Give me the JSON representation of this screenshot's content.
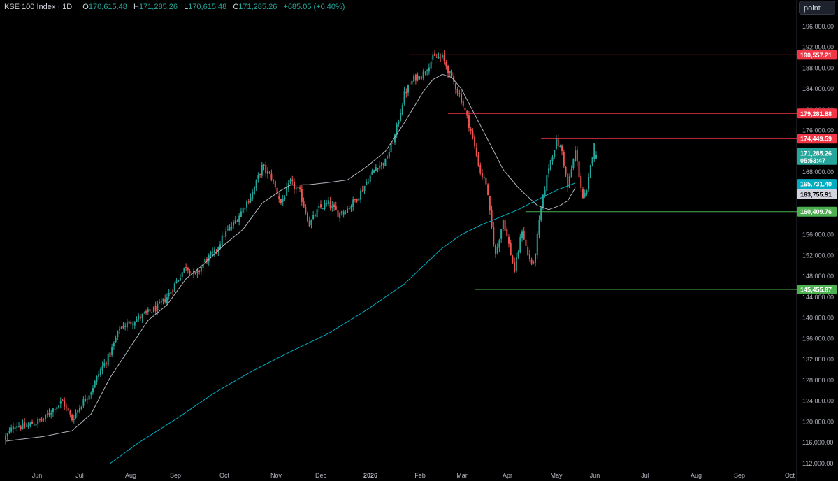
{
  "header": {
    "symbol": "KSE 100 Index · 1D",
    "open_label": "O",
    "open": "170,615.48",
    "high_label": "H",
    "high": "171,285.26",
    "low_label": "L",
    "low": "170,615.48",
    "close_label": "C",
    "close": "171,285.26",
    "change": "+685.05 (+0.40%)"
  },
  "unit_button": "point",
  "colors": {
    "up": "#26a69a",
    "down": "#ef5350",
    "ma_short": "#b2b5be",
    "ma_long": "#00acc1",
    "resistance": "#f23645",
    "support": "#4caf50"
  },
  "chart_data": {
    "type": "candlestick",
    "title": "KSE 100 Index · 1D",
    "ylim": [
      112000,
      198000
    ],
    "y_ticks": [
      "196,000.00",
      "192,000.00",
      "188,000.00",
      "184,000.00",
      "180,000.00",
      "176,000.00",
      "172,000.00",
      "168,000.00",
      "164,000.00",
      "160,000.00",
      "156,000.00",
      "152,000.00",
      "148,000.00",
      "144,000.00",
      "140,000.00",
      "136,000.00",
      "132,000.00",
      "128,000.00",
      "124,000.00",
      "120,000.00",
      "116,000.00",
      "112,000.00"
    ],
    "x_labels": [
      "Jun",
      "Jul",
      "Aug",
      "Sep",
      "Oct",
      "Nov",
      "Dec",
      "2026",
      "Feb",
      "Mar",
      "Apr",
      "May",
      "Jun",
      "Jul",
      "Aug",
      "Sep",
      "Oct"
    ],
    "close_anchors": [
      [
        0,
        117000
      ],
      [
        5,
        119500
      ],
      [
        10,
        119000
      ],
      [
        15,
        119800
      ],
      [
        20,
        120500
      ],
      [
        25,
        122500
      ],
      [
        30,
        124000
      ],
      [
        35,
        120500
      ],
      [
        40,
        123500
      ],
      [
        45,
        126000
      ],
      [
        50,
        130000
      ],
      [
        55,
        133000
      ],
      [
        60,
        138000
      ],
      [
        65,
        139000
      ],
      [
        70,
        140000
      ],
      [
        75,
        141000
      ],
      [
        80,
        142000
      ],
      [
        85,
        144000
      ],
      [
        90,
        147000
      ],
      [
        95,
        150000
      ],
      [
        100,
        148000
      ],
      [
        105,
        151000
      ],
      [
        110,
        152500
      ],
      [
        115,
        156000
      ],
      [
        120,
        158000
      ],
      [
        125,
        161000
      ],
      [
        130,
        164000
      ],
      [
        135,
        169000
      ],
      [
        140,
        167000
      ],
      [
        145,
        162000
      ],
      [
        150,
        166000
      ],
      [
        155,
        164000
      ],
      [
        160,
        158000
      ],
      [
        165,
        161000
      ],
      [
        170,
        162000
      ],
      [
        175,
        160000
      ],
      [
        180,
        161000
      ],
      [
        185,
        163000
      ],
      [
        190,
        166000
      ],
      [
        195,
        169000
      ],
      [
        200,
        170000
      ],
      [
        205,
        175000
      ],
      [
        210,
        183000
      ],
      [
        215,
        186000
      ],
      [
        220,
        187000
      ],
      [
        225,
        190000
      ],
      [
        230,
        190000
      ],
      [
        235,
        186000
      ],
      [
        240,
        182000
      ],
      [
        245,
        176000
      ],
      [
        250,
        168000
      ],
      [
        253,
        166000
      ],
      [
        255,
        160000
      ],
      [
        258,
        152000
      ],
      [
        262,
        159000
      ],
      [
        265,
        154000
      ],
      [
        268,
        149000
      ],
      [
        272,
        157000
      ],
      [
        275,
        152000
      ],
      [
        278,
        150000
      ],
      [
        282,
        161000
      ],
      [
        286,
        169000
      ],
      [
        290,
        174000
      ],
      [
        293,
        172000
      ],
      [
        296,
        165000
      ],
      [
        300,
        172000
      ],
      [
        304,
        163000
      ],
      [
        306,
        164000
      ],
      [
        308,
        169000
      ],
      [
        310,
        174000
      ],
      [
        311,
        171285
      ]
    ],
    "ma_short_anchors": [
      [
        0,
        116300
      ],
      [
        20,
        117200
      ],
      [
        35,
        118300
      ],
      [
        45,
        121500
      ],
      [
        55,
        128500
      ],
      [
        65,
        134000
      ],
      [
        75,
        139500
      ],
      [
        85,
        142500
      ],
      [
        95,
        147500
      ],
      [
        105,
        150500
      ],
      [
        115,
        154000
      ],
      [
        125,
        157000
      ],
      [
        135,
        162000
      ],
      [
        145,
        164500
      ],
      [
        150,
        165500
      ],
      [
        160,
        165600
      ],
      [
        170,
        166000
      ],
      [
        180,
        166500
      ],
      [
        190,
        169000
      ],
      [
        200,
        172000
      ],
      [
        210,
        177500
      ],
      [
        220,
        183500
      ],
      [
        225,
        185800
      ],
      [
        230,
        186800
      ],
      [
        235,
        186200
      ],
      [
        240,
        184000
      ],
      [
        245,
        180500
      ],
      [
        250,
        177000
      ],
      [
        255,
        173500
      ],
      [
        262,
        168500
      ],
      [
        270,
        165000
      ],
      [
        280,
        161600
      ],
      [
        286,
        160800
      ],
      [
        292,
        161600
      ],
      [
        296,
        162500
      ],
      [
        300,
        165000
      ]
    ],
    "ma_long_anchors": [
      [
        55,
        112000
      ],
      [
        70,
        116000
      ],
      [
        90,
        120600
      ],
      [
        110,
        125600
      ],
      [
        130,
        129800
      ],
      [
        150,
        133500
      ],
      [
        170,
        137000
      ],
      [
        190,
        141500
      ],
      [
        210,
        146500
      ],
      [
        220,
        150000
      ],
      [
        230,
        153400
      ],
      [
        240,
        156000
      ],
      [
        250,
        157800
      ],
      [
        260,
        159300
      ],
      [
        270,
        160800
      ],
      [
        280,
        162700
      ],
      [
        290,
        164500
      ],
      [
        300,
        165900
      ]
    ],
    "price_lines": [
      {
        "value": 190557.21,
        "label": "190,557.21",
        "kind": "resistance",
        "from_index": 213
      },
      {
        "value": 179281.88,
        "label": "179,281.88",
        "kind": "resistance",
        "from_index": 233
      },
      {
        "value": 174449.59,
        "label": "174,449.59",
        "kind": "resistance",
        "from_index": 282
      },
      {
        "value": 160409.76,
        "label": "160,409.76",
        "kind": "support",
        "from_index": 274
      },
      {
        "value": 145455.87,
        "label": "145,455.87",
        "kind": "support",
        "from_index": 247
      }
    ],
    "value_tags": [
      {
        "value": 171285.26,
        "label": "171,285.26",
        "sub": "05:53:47",
        "kind": "last"
      },
      {
        "value": 165731.4,
        "label": "165,731.40",
        "kind": "ma_long"
      },
      {
        "value": 163755.91,
        "label": "163,755.91",
        "kind": "ma_short"
      }
    ]
  }
}
